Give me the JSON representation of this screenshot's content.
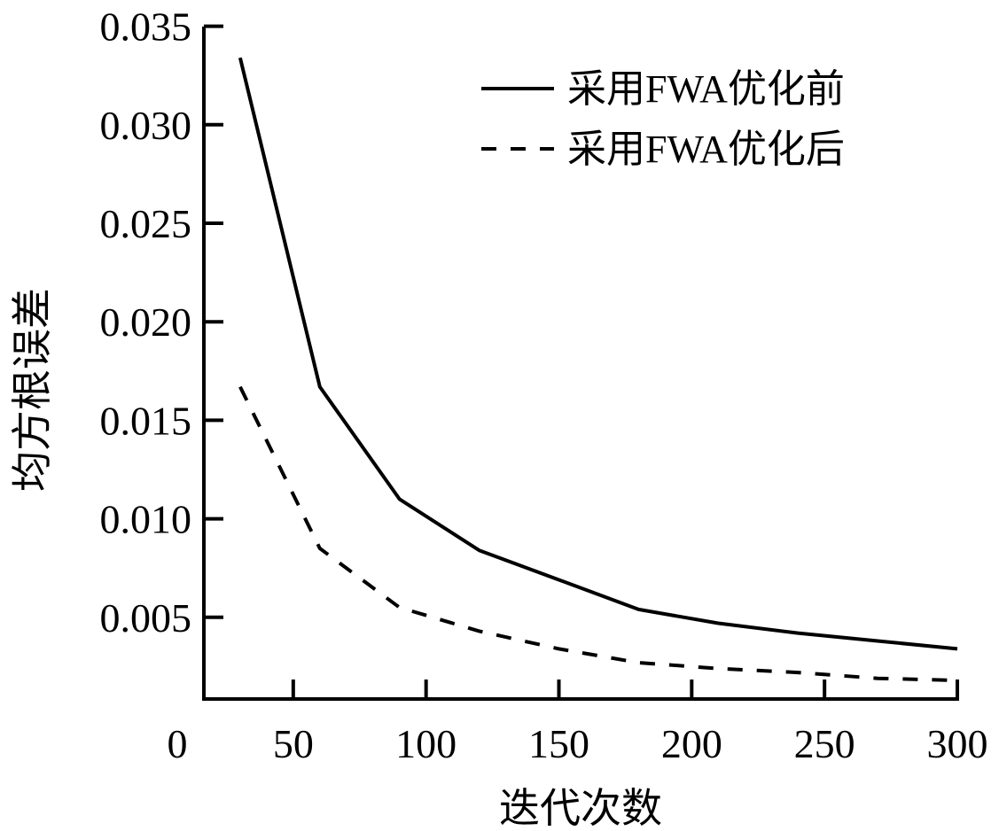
{
  "chart_data": {
    "type": "line",
    "title": "",
    "xlabel": "迭代次数",
    "ylabel": "均方根误差",
    "xlim": [
      0,
      300
    ],
    "ylim": [
      0.0008,
      0.035
    ],
    "x_ticks": [
      "0",
      "50",
      "100",
      "150",
      "200",
      "250",
      "300"
    ],
    "x_tick_values": [
      0,
      50,
      100,
      150,
      200,
      250,
      300
    ],
    "y_ticks": [
      "0.005",
      "0.010",
      "0.015",
      "0.020",
      "0.025",
      "0.030",
      "0.035"
    ],
    "y_tick_values": [
      0.005,
      0.01,
      0.015,
      0.02,
      0.025,
      0.03,
      0.035
    ],
    "grid": false,
    "legend_position": "top-right",
    "x": [
      30,
      60,
      90,
      120,
      150,
      180,
      210,
      240,
      270,
      300
    ],
    "series": [
      {
        "name": "采用FWA优化前",
        "style": "solid",
        "color": "#000000",
        "values": [
          0.0334,
          0.0167,
          0.011,
          0.0084,
          0.0069,
          0.0054,
          0.0047,
          0.0042,
          0.0038,
          0.0034
        ]
      },
      {
        "name": "采用FWA优化后",
        "style": "dashed",
        "color": "#000000",
        "values": [
          0.0167,
          0.0085,
          0.0055,
          0.0043,
          0.0034,
          0.0027,
          0.0024,
          0.0022,
          0.0019,
          0.0018
        ]
      }
    ]
  }
}
